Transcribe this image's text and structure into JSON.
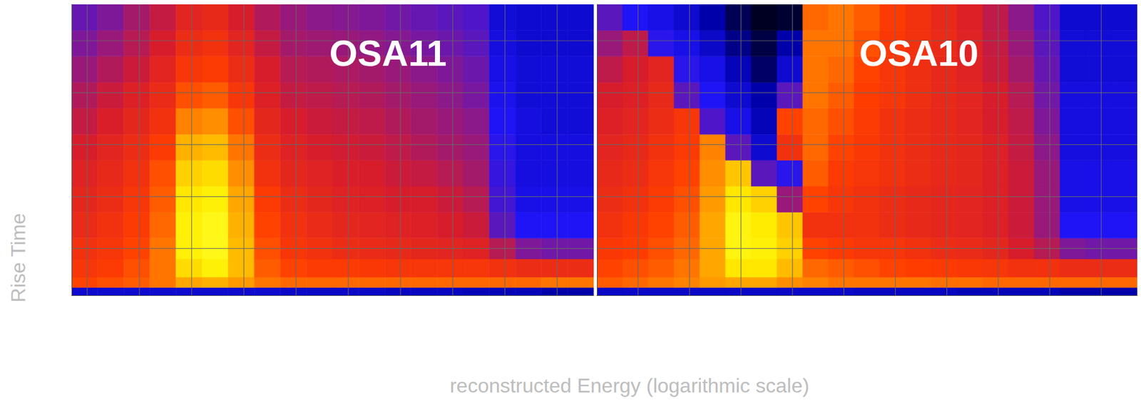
{
  "chart_data": [
    {
      "type": "heatmap",
      "title": "OSA11",
      "xlim": [
        0,
        10
      ],
      "xticks": [
        0.3,
        1.3,
        2.3,
        3.3,
        4.3,
        5.3,
        6.3,
        7.3,
        8.3,
        9.3
      ],
      "ylim": [
        0,
        5.6
      ],
      "yticks": [
        0.9,
        1.9,
        2.9,
        3.9,
        4.9
      ],
      "grid": true,
      "tick_labels": false,
      "zlim": [
        0,
        1
      ],
      "x_edges": [
        0,
        0.5,
        1,
        1.5,
        2,
        2.5,
        3,
        3.5,
        4,
        4.5,
        5,
        5.5,
        6,
        6.5,
        7,
        7.5,
        8,
        8.5,
        9,
        9.5,
        10
      ],
      "y_edges": [
        0,
        0.15,
        0.35,
        0.7,
        1.1,
        1.6,
        2.1,
        2.6,
        3.1,
        3.6,
        4.1,
        4.6,
        5.1,
        5.6
      ],
      "cells": [
        [
          0.15,
          0.15,
          0.15,
          0.15,
          0.15,
          0.15,
          0.15,
          0.15,
          0.14,
          0.14,
          0.14,
          0.14,
          0.13,
          0.13,
          0.13,
          0.12,
          0.12,
          0.12,
          0.1,
          0.1
        ],
        [
          0.66,
          0.68,
          0.7,
          0.74,
          0.82,
          0.84,
          0.8,
          0.74,
          0.72,
          0.72,
          0.72,
          0.72,
          0.72,
          0.72,
          0.72,
          0.72,
          0.72,
          0.72,
          0.74,
          0.74
        ],
        [
          0.62,
          0.64,
          0.68,
          0.74,
          0.92,
          0.96,
          0.86,
          0.7,
          0.66,
          0.64,
          0.64,
          0.63,
          0.62,
          0.62,
          0.62,
          0.62,
          0.6,
          0.58,
          0.58,
          0.58
        ],
        [
          0.6,
          0.62,
          0.66,
          0.74,
          0.96,
          0.98,
          0.86,
          0.68,
          0.62,
          0.6,
          0.58,
          0.57,
          0.56,
          0.55,
          0.54,
          0.53,
          0.45,
          0.36,
          0.34,
          0.34
        ],
        [
          0.57,
          0.6,
          0.64,
          0.72,
          0.96,
          0.98,
          0.84,
          0.66,
          0.6,
          0.57,
          0.55,
          0.54,
          0.53,
          0.52,
          0.5,
          0.48,
          0.3,
          0.2,
          0.2,
          0.2
        ],
        [
          0.55,
          0.58,
          0.62,
          0.7,
          0.94,
          0.96,
          0.82,
          0.64,
          0.58,
          0.55,
          0.53,
          0.52,
          0.5,
          0.5,
          0.48,
          0.45,
          0.26,
          0.18,
          0.18,
          0.18
        ],
        [
          0.53,
          0.56,
          0.6,
          0.68,
          0.9,
          0.92,
          0.78,
          0.6,
          0.55,
          0.53,
          0.51,
          0.5,
          0.48,
          0.47,
          0.45,
          0.42,
          0.24,
          0.17,
          0.17,
          0.17
        ],
        [
          0.5,
          0.54,
          0.58,
          0.64,
          0.84,
          0.86,
          0.74,
          0.58,
          0.53,
          0.5,
          0.49,
          0.48,
          0.46,
          0.44,
          0.42,
          0.4,
          0.22,
          0.17,
          0.17,
          0.17
        ],
        [
          0.47,
          0.51,
          0.55,
          0.6,
          0.76,
          0.78,
          0.68,
          0.55,
          0.5,
          0.48,
          0.47,
          0.46,
          0.44,
          0.42,
          0.4,
          0.38,
          0.2,
          0.17,
          0.16,
          0.16
        ],
        [
          0.44,
          0.48,
          0.52,
          0.57,
          0.68,
          0.7,
          0.62,
          0.52,
          0.47,
          0.46,
          0.45,
          0.44,
          0.42,
          0.4,
          0.38,
          0.35,
          0.19,
          0.16,
          0.16,
          0.16
        ],
        [
          0.4,
          0.44,
          0.48,
          0.54,
          0.62,
          0.64,
          0.58,
          0.5,
          0.45,
          0.44,
          0.43,
          0.42,
          0.4,
          0.38,
          0.36,
          0.33,
          0.18,
          0.16,
          0.16,
          0.16
        ],
        [
          0.36,
          0.4,
          0.45,
          0.5,
          0.58,
          0.6,
          0.54,
          0.47,
          0.42,
          0.41,
          0.4,
          0.39,
          0.37,
          0.35,
          0.33,
          0.3,
          0.17,
          0.15,
          0.15,
          0.15
        ],
        [
          0.32,
          0.36,
          0.42,
          0.47,
          0.54,
          0.56,
          0.5,
          0.44,
          0.4,
          0.38,
          0.37,
          0.36,
          0.34,
          0.32,
          0.3,
          0.28,
          0.16,
          0.15,
          0.15,
          0.15
        ]
      ]
    },
    {
      "type": "heatmap",
      "title": "OSA10",
      "xlim": [
        0,
        10.5
      ],
      "xticks": [
        0.8,
        1.8,
        2.8,
        3.8,
        4.8,
        5.8,
        6.8,
        7.8,
        8.8,
        9.8
      ],
      "ylim": [
        0,
        5.6
      ],
      "yticks": [
        0.9,
        1.9,
        2.9,
        3.9,
        4.9
      ],
      "grid": true,
      "tick_labels": false,
      "zlim": [
        0,
        1
      ],
      "x_edges": [
        0,
        0.5,
        1,
        1.5,
        2,
        2.5,
        3,
        3.5,
        4,
        4.5,
        5,
        5.5,
        6,
        6.5,
        7,
        7.5,
        8,
        8.5,
        9,
        9.5,
        10,
        10.5
      ],
      "y_edges": [
        0,
        0.15,
        0.35,
        0.7,
        1.1,
        1.6,
        2.1,
        2.6,
        3.1,
        3.6,
        4.1,
        4.6,
        5.1,
        5.6
      ],
      "cells": [
        [
          0.14,
          0.14,
          0.14,
          0.14,
          0.14,
          0.14,
          0.14,
          0.14,
          0.14,
          0.14,
          0.13,
          0.13,
          0.13,
          0.13,
          0.12,
          0.12,
          0.12,
          0.12,
          0.1,
          0.1,
          0.1
        ],
        [
          0.7,
          0.72,
          0.74,
          0.76,
          0.8,
          0.82,
          0.82,
          0.78,
          0.76,
          0.74,
          0.74,
          0.74,
          0.74,
          0.73,
          0.73,
          0.72,
          0.72,
          0.72,
          0.72,
          0.72,
          0.72
        ],
        [
          0.66,
          0.68,
          0.7,
          0.74,
          0.82,
          0.94,
          0.94,
          0.86,
          0.72,
          0.7,
          0.68,
          0.66,
          0.65,
          0.64,
          0.63,
          0.62,
          0.6,
          0.6,
          0.58,
          0.58,
          0.58
        ],
        [
          0.63,
          0.65,
          0.68,
          0.72,
          0.82,
          0.97,
          0.96,
          0.9,
          0.66,
          0.64,
          0.62,
          0.62,
          0.6,
          0.58,
          0.57,
          0.55,
          0.5,
          0.45,
          0.36,
          0.34,
          0.34
        ],
        [
          0.6,
          0.63,
          0.66,
          0.7,
          0.82,
          0.97,
          0.95,
          0.88,
          0.6,
          0.6,
          0.6,
          0.58,
          0.56,
          0.55,
          0.54,
          0.52,
          0.48,
          0.4,
          0.2,
          0.2,
          0.2
        ],
        [
          0.58,
          0.6,
          0.64,
          0.68,
          0.8,
          0.94,
          0.9,
          0.4,
          0.66,
          0.62,
          0.6,
          0.58,
          0.56,
          0.55,
          0.54,
          0.52,
          0.48,
          0.4,
          0.18,
          0.18,
          0.18
        ],
        [
          0.56,
          0.58,
          0.62,
          0.66,
          0.78,
          0.88,
          0.3,
          0.22,
          0.7,
          0.64,
          0.62,
          0.6,
          0.58,
          0.56,
          0.55,
          0.52,
          0.48,
          0.4,
          0.18,
          0.18,
          0.18
        ],
        [
          0.54,
          0.56,
          0.6,
          0.64,
          0.76,
          0.3,
          0.15,
          0.6,
          0.72,
          0.66,
          0.63,
          0.6,
          0.58,
          0.56,
          0.55,
          0.52,
          0.47,
          0.38,
          0.17,
          0.17,
          0.17
        ],
        [
          0.52,
          0.54,
          0.58,
          0.62,
          0.28,
          0.18,
          0.12,
          0.66,
          0.72,
          0.68,
          0.64,
          0.6,
          0.58,
          0.56,
          0.54,
          0.5,
          0.46,
          0.36,
          0.17,
          0.17,
          0.17
        ],
        [
          0.5,
          0.52,
          0.56,
          0.3,
          0.2,
          0.15,
          0.1,
          0.3,
          0.74,
          0.7,
          0.65,
          0.62,
          0.59,
          0.56,
          0.54,
          0.5,
          0.45,
          0.34,
          0.17,
          0.17,
          0.17
        ],
        [
          0.46,
          0.5,
          0.54,
          0.22,
          0.18,
          0.12,
          0.06,
          0.15,
          0.74,
          0.72,
          0.66,
          0.62,
          0.59,
          0.56,
          0.53,
          0.48,
          0.42,
          0.32,
          0.16,
          0.16,
          0.16
        ],
        [
          0.4,
          0.46,
          0.22,
          0.18,
          0.14,
          0.08,
          0.04,
          0.1,
          0.74,
          0.74,
          0.68,
          0.63,
          0.6,
          0.57,
          0.53,
          0.47,
          0.4,
          0.3,
          0.16,
          0.16,
          0.16
        ],
        [
          0.3,
          0.2,
          0.18,
          0.15,
          0.1,
          0.05,
          0.02,
          0.03,
          0.72,
          0.74,
          0.7,
          0.64,
          0.6,
          0.56,
          0.52,
          0.46,
          0.38,
          0.28,
          0.15,
          0.15,
          0.15
        ]
      ]
    }
  ],
  "xlabel": "reconstructed Energy (logarithmic scale)",
  "ylabel": "Rise Time"
}
